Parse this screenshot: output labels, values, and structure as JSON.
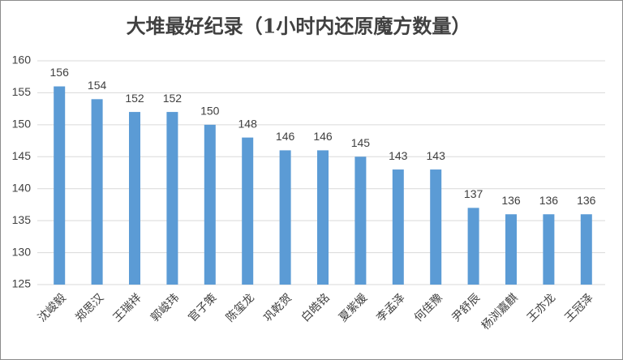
{
  "chart_data": {
    "type": "bar",
    "title": "大堆最好纪录（1小时内还原魔方数量）",
    "categories": [
      "沈峻毅",
      "郑思汉",
      "王瑞祥",
      "郭峻玮",
      "官子策",
      "陈玺龙",
      "巩乾贺",
      "白皓铭",
      "夏紫媛",
      "李孟泽",
      "何佳豫",
      "尹舒辰",
      "杨浏嘉麒",
      "王亦龙",
      "王冠泽"
    ],
    "values": [
      156,
      154,
      152,
      152,
      150,
      148,
      146,
      146,
      145,
      143,
      143,
      137,
      136,
      136,
      136
    ],
    "color": "#5b9bd5",
    "ylim": [
      125,
      160
    ],
    "yticks": [
      125,
      130,
      135,
      140,
      145,
      150,
      155,
      160
    ],
    "grid": true
  }
}
